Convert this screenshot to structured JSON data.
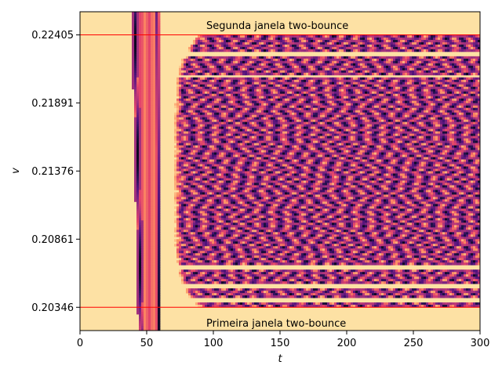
{
  "chart_data": {
    "type": "heatmap",
    "xlabel": "t",
    "ylabel": "v",
    "xlim": [
      0,
      300
    ],
    "ylim": [
      0.2017,
      0.2258
    ],
    "x_ticks": [
      0,
      50,
      100,
      150,
      200,
      250,
      300
    ],
    "x_tick_labels": [
      "0",
      "50",
      "100",
      "150",
      "200",
      "250",
      "300"
    ],
    "y_ticks": [
      0.20346,
      0.20861,
      0.21376,
      0.21891,
      0.22405
    ],
    "y_tick_labels": [
      "0.20346",
      "0.20861",
      "0.21376",
      "0.21891",
      "0.22405"
    ],
    "colormap": [
      "#fcfdbf",
      "#fec287",
      "#fc8961",
      "#e3436b",
      "#b73779",
      "#7f2582",
      "#51127c",
      "#1d1147",
      "#000004"
    ],
    "reference_lines": [
      {
        "y": 0.22405,
        "color": "#ff0000"
      },
      {
        "y": 0.20346,
        "color": "#ff0000"
      }
    ],
    "annotations": [
      {
        "text": "Segunda janela two-bounce",
        "x": 100,
        "y": 0.2248
      },
      {
        "text": "Primeira janela two-bounce",
        "x": 100,
        "y": 0.2023
      }
    ],
    "grid": false,
    "legend": "none"
  }
}
